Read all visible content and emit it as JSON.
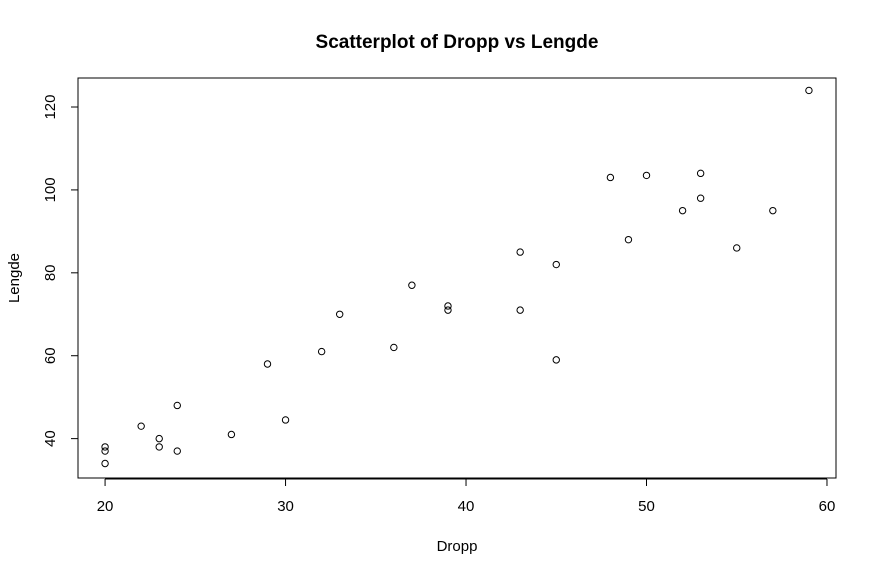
{
  "chart_data": {
    "type": "scatter",
    "title": "Scatterplot of Dropp vs Lengde",
    "xlabel": "Dropp",
    "ylabel": "Lengde",
    "xlim": [
      18.5,
      60.5
    ],
    "ylim": [
      30.5,
      127
    ],
    "xticks": [
      20,
      30,
      40,
      50,
      60
    ],
    "yticks": [
      40,
      60,
      80,
      100,
      120
    ],
    "grid": false,
    "legend": "none",
    "points": [
      {
        "x": 20,
        "y": 38
      },
      {
        "x": 20,
        "y": 37
      },
      {
        "x": 20,
        "y": 34
      },
      {
        "x": 22,
        "y": 43
      },
      {
        "x": 23,
        "y": 40
      },
      {
        "x": 23,
        "y": 38
      },
      {
        "x": 24,
        "y": 48
      },
      {
        "x": 24,
        "y": 37
      },
      {
        "x": 27,
        "y": 41
      },
      {
        "x": 29,
        "y": 58
      },
      {
        "x": 30,
        "y": 44.5
      },
      {
        "x": 32,
        "y": 61
      },
      {
        "x": 33,
        "y": 70
      },
      {
        "x": 36,
        "y": 62
      },
      {
        "x": 37,
        "y": 77
      },
      {
        "x": 39,
        "y": 72
      },
      {
        "x": 39,
        "y": 71
      },
      {
        "x": 43,
        "y": 85
      },
      {
        "x": 43,
        "y": 71
      },
      {
        "x": 45,
        "y": 82
      },
      {
        "x": 45,
        "y": 59
      },
      {
        "x": 48,
        "y": 103
      },
      {
        "x": 49,
        "y": 88
      },
      {
        "x": 50,
        "y": 103.5
      },
      {
        "x": 52,
        "y": 95
      },
      {
        "x": 53,
        "y": 104
      },
      {
        "x": 53,
        "y": 98
      },
      {
        "x": 55,
        "y": 86
      },
      {
        "x": 57,
        "y": 95
      },
      {
        "x": 59,
        "y": 124
      }
    ]
  }
}
